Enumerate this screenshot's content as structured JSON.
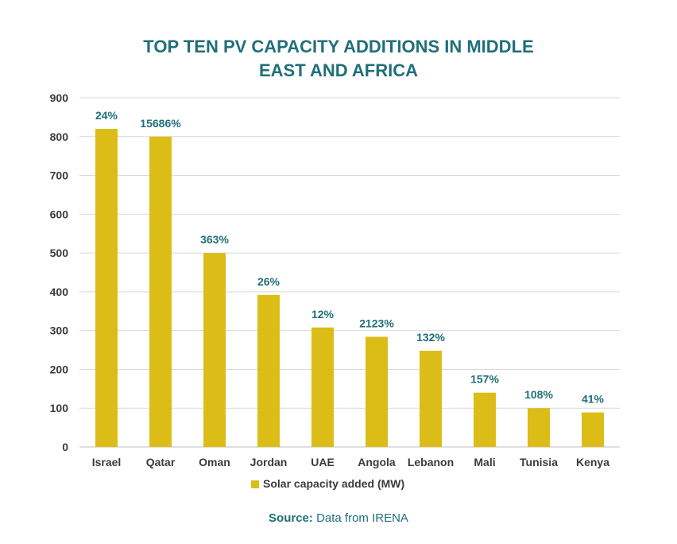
{
  "chart_data": {
    "type": "bar",
    "title_line1": "TOP TEN PV CAPACITY ADDITIONS IN MIDDLE",
    "title_line2": "EAST AND AFRICA",
    "categories": [
      "Israel",
      "Qatar",
      "Oman",
      "Jordan",
      "UAE",
      "Angola",
      "Lebanon",
      "Mali",
      "Tunisia",
      "Kenya"
    ],
    "series": [
      {
        "name": "Solar capacity added (MW)",
        "values": [
          820,
          800,
          500,
          392,
          308,
          284,
          248,
          140,
          100,
          89
        ],
        "labels": [
          "24%",
          "15686%",
          "363%",
          "26%",
          "12%",
          "2123%",
          "132%",
          "157%",
          "108%",
          "41%"
        ]
      }
    ],
    "ylim": [
      0,
      900
    ],
    "yticks": [
      0,
      100,
      200,
      300,
      400,
      500,
      600,
      700,
      800,
      900
    ],
    "grid": true,
    "legend_position": "bottom",
    "bar_color": "#dcbd18",
    "label_color": "#1f6f7a",
    "title_color": "#1f6f7a"
  },
  "source": {
    "label": "Source:",
    "text": " Data from IRENA"
  }
}
